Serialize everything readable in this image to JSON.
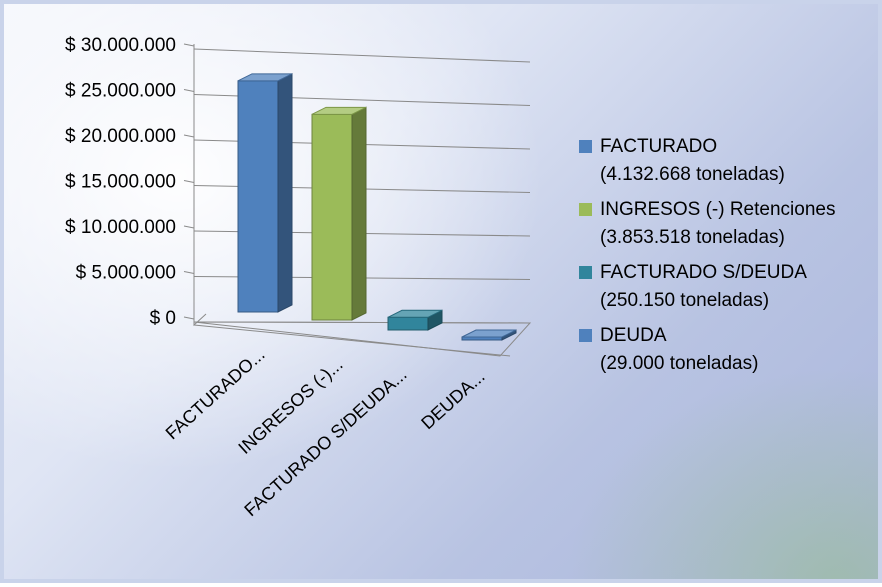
{
  "chart_data": {
    "type": "bar",
    "title": "",
    "xlabel": "",
    "ylabel": "",
    "ylim": [
      0,
      30000000
    ],
    "y_ticks": [
      "$ 0",
      "$ 5.000.000",
      "$ 10.000.000",
      "$ 15.000.000",
      "$ 20.000.000",
      "$ 25.000.000",
      "$ 30.000.000"
    ],
    "categories": [
      "FACTURADO...",
      "INGRESOS (-)...",
      "FACTURADO S/DEUDA...",
      "DEUDA..."
    ],
    "values": [
      25400000,
      22600000,
      1400000,
      160000
    ],
    "colors": [
      "#4f81bd",
      "#9bbb59",
      "#31859c",
      "#4f81bd"
    ],
    "grid": true,
    "legend_position": "right",
    "legend": [
      {
        "line1": "FACTURADO",
        "line2": "(4.132.668 toneladas)",
        "color": "#4f81bd"
      },
      {
        "line1": "INGRESOS (-) Retenciones",
        "line2": "(3.853.518 toneladas)",
        "color": "#9bbb59"
      },
      {
        "line1": "FACTURADO S/DEUDA",
        "line2": "(250.150 toneladas)",
        "color": "#31859c"
      },
      {
        "line1": "DEUDA",
        "line2": "(29.000 toneladas)",
        "color": "#4f81bd"
      }
    ]
  }
}
